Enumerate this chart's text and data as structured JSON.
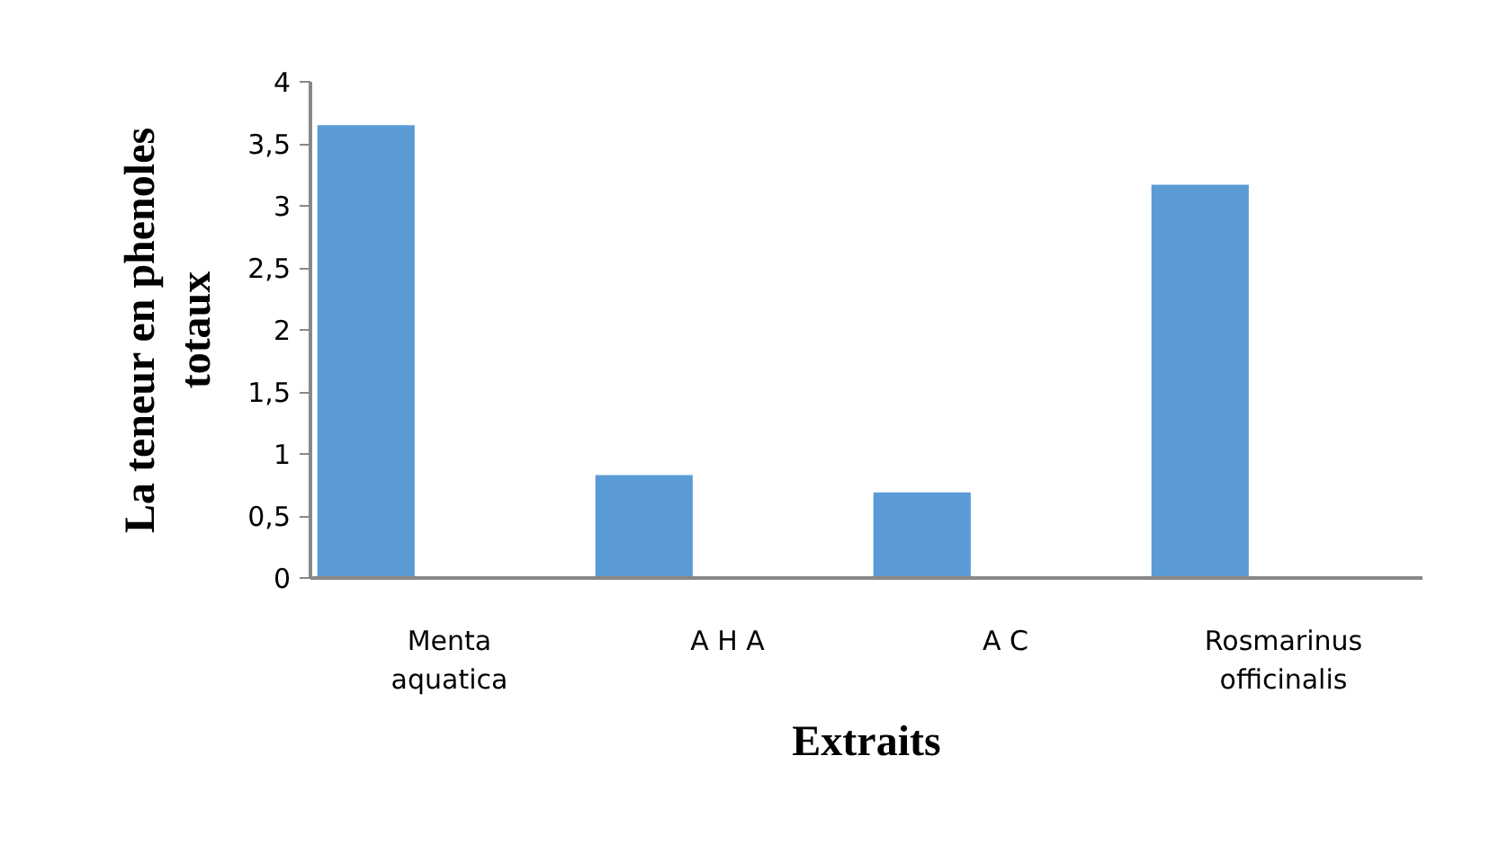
{
  "chart_data": {
    "type": "bar",
    "xlabel": "Extraits",
    "ylabel": "La teneur en phenoles totaux",
    "categories": [
      "Menta aquatica",
      "A H A",
      "A C",
      "Rosmarinus officinalis"
    ],
    "values": [
      3.65,
      0.83,
      0.69,
      3.17
    ],
    "color": "#5b9bd5",
    "ylim": [
      0,
      4
    ],
    "yticks": [
      0,
      {
        "value": 0.5,
        "label": "0,5"
      },
      1,
      {
        "value": 1.5,
        "label": "1,5"
      },
      2,
      {
        "value": 2.5,
        "label": "2,5"
      },
      3,
      {
        "value": 3.5,
        "label": "3,5"
      },
      4
    ],
    "grid": false
  }
}
